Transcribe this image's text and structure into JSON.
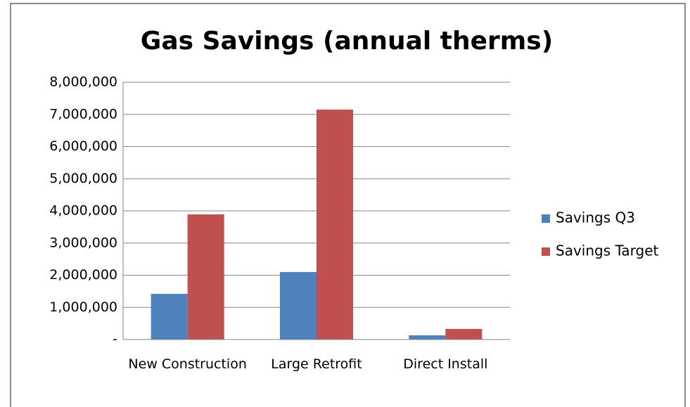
{
  "chart_data": {
    "type": "bar",
    "title": "Gas Savings (annual therms)",
    "categories": [
      "New Construction",
      "Large Retrofit",
      "Direct Install"
    ],
    "series": [
      {
        "name": "Savings Q3",
        "color": "#4f81bd",
        "values": [
          1420000,
          2100000,
          130000
        ]
      },
      {
        "name": "Savings Target",
        "color": "#c0504d",
        "values": [
          3890000,
          7150000,
          330000
        ]
      }
    ],
    "ylim": [
      0,
      8000000
    ],
    "yticks": [
      {
        "value": 0,
        "label": "-"
      },
      {
        "value": 1000000,
        "label": "1,000,000"
      },
      {
        "value": 2000000,
        "label": "2,000,000"
      },
      {
        "value": 3000000,
        "label": "3,000,000"
      },
      {
        "value": 4000000,
        "label": "4,000,000"
      },
      {
        "value": 5000000,
        "label": "5,000,000"
      },
      {
        "value": 6000000,
        "label": "6,000,000"
      },
      {
        "value": 7000000,
        "label": "7,000,000"
      },
      {
        "value": 8000000,
        "label": "8,000,000"
      }
    ],
    "grid": true,
    "legend": "right"
  }
}
